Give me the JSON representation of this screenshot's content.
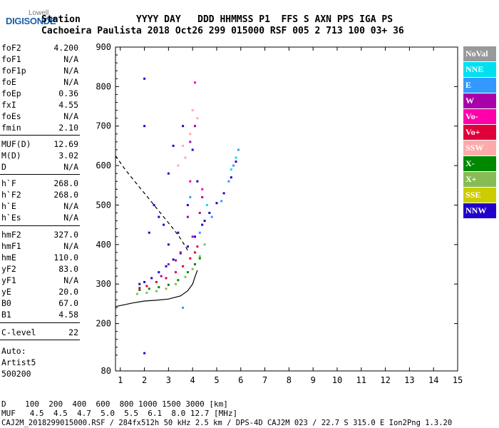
{
  "logo": {
    "top": "Lowell",
    "main": "DIGISONDE"
  },
  "header": {
    "line1": "Station          YYYY DAY   DDD HHMMSS P1  FFS S AXN PPS IGA PS",
    "line2": "Cachoeira Paulista 2018 Oct26 299 015000 RSF 005 2 713 100 03+ 36"
  },
  "params": [
    {
      "label": "foF2",
      "value": "4.200"
    },
    {
      "label": "foF1",
      "value": "N/A"
    },
    {
      "label": "foF1p",
      "value": "N/A"
    },
    {
      "label": "foE",
      "value": "N/A"
    },
    {
      "label": "foEp",
      "value": "0.36"
    },
    {
      "label": "fxI",
      "value": "4.55"
    },
    {
      "label": "foEs",
      "value": "N/A"
    },
    {
      "label": "fmin",
      "value": "2.10"
    },
    {
      "label": "MUF(D)",
      "value": "12.69"
    },
    {
      "label": "M(D)",
      "value": "3.02"
    },
    {
      "label": "D",
      "value": "N/A"
    },
    {
      "label": "h`F",
      "value": "268.0"
    },
    {
      "label": "h`F2",
      "value": "268.0"
    },
    {
      "label": "h`E",
      "value": "N/A"
    },
    {
      "label": "h`Es",
      "value": "N/A"
    },
    {
      "label": "hmF2",
      "value": "327.0"
    },
    {
      "label": "hmF1",
      "value": "N/A"
    },
    {
      "label": "hmE",
      "value": "110.0"
    },
    {
      "label": "yF2",
      "value": "83.0"
    },
    {
      "label": "yF1",
      "value": "N/A"
    },
    {
      "label": "yE",
      "value": "20.0"
    },
    {
      "label": "B0",
      "value": "67.0"
    },
    {
      "label": "B1",
      "value": "4.58"
    },
    {
      "label": "C-level",
      "value": "22"
    }
  ],
  "auto": {
    "line1": "Auto:",
    "line2": "Artist5",
    "line3": "500200"
  },
  "legend": [
    {
      "label": "NoVal",
      "color": "#999999"
    },
    {
      "label": "NNE",
      "color": "#00e0f0"
    },
    {
      "label": "E",
      "color": "#3399ff"
    },
    {
      "label": "W",
      "color": "#aa00aa"
    },
    {
      "label": "Vo-",
      "color": "#ff00aa"
    },
    {
      "label": "Vo+",
      "color": "#e0003a"
    },
    {
      "label": "SSW",
      "color": "#ffaaaa"
    },
    {
      "label": "X-",
      "color": "#008800"
    },
    {
      "label": "X+",
      "color": "#88bb55"
    },
    {
      "label": "SSE",
      "color": "#cccc00"
    },
    {
      "label": "NNW",
      "color": "#2200cc"
    }
  ],
  "bottom": {
    "d_line": "D    100  200  400  600  800 1000 1500 3000 [km]",
    "muf_line": "MUF   4.5  4.5  4.7  5.0  5.5  6.1  8.0 12.7 [MHz]",
    "footer": "CAJ2M_2018299015000.RSF / 284fx512h 50 kHz 2.5 km / DPS-4D CAJ2M 023 / 22.7 S 315.0 E Ion2Png 1.3.20"
  },
  "chart_data": {
    "type": "scatter",
    "xlim": [
      0.8,
      15
    ],
    "ylim": [
      80,
      900
    ],
    "x_ticks": [
      "1",
      "2",
      "3",
      "4",
      "5",
      "6",
      "7",
      "8",
      "9",
      "10",
      "11",
      "12",
      "13",
      "14",
      "15"
    ],
    "y_ticks": [
      "80",
      "200",
      "300",
      "400",
      "500",
      "600",
      "700",
      "800",
      "900"
    ],
    "grid": false,
    "legend_position": "right",
    "profile_curve": {
      "x": [
        0.8,
        1.5,
        2.0,
        2.5,
        3.0,
        3.5,
        3.8,
        4.0,
        4.1,
        4.2
      ],
      "y": [
        243,
        252,
        257,
        259,
        262,
        270,
        283,
        300,
        318,
        335
      ]
    },
    "extrapolated_curve": {
      "x": [
        0.8,
        1.2,
        1.6,
        2.0,
        2.4,
        2.8,
        3.2,
        3.5,
        3.8
      ],
      "y": [
        625,
        590,
        560,
        530,
        500,
        470,
        440,
        415,
        385
      ]
    },
    "series": [
      {
        "name": "NNW",
        "color": "#2200cc",
        "points": [
          [
            1.8,
            300
          ],
          [
            2.0,
            305
          ],
          [
            2.3,
            315
          ],
          [
            2.6,
            330
          ],
          [
            2.9,
            345
          ],
          [
            3.2,
            362
          ],
          [
            3.5,
            378
          ],
          [
            3.8,
            395
          ],
          [
            4.1,
            420
          ],
          [
            4.4,
            450
          ],
          [
            4.7,
            480
          ],
          [
            5.0,
            505
          ],
          [
            5.3,
            530
          ],
          [
            5.6,
            570
          ],
          [
            5.8,
            610
          ],
          [
            2.0,
            820
          ],
          [
            2.0,
            700
          ],
          [
            3.6,
            700
          ],
          [
            3.2,
            650
          ],
          [
            2.4,
            500
          ],
          [
            2.8,
            450
          ],
          [
            3.4,
            430
          ],
          [
            3.8,
            500
          ],
          [
            4.2,
            560
          ],
          [
            4.5,
            460
          ],
          [
            3.0,
            400
          ],
          [
            2.2,
            430
          ],
          [
            2.6,
            470
          ],
          [
            2.0,
            125
          ],
          [
            3.0,
            580
          ],
          [
            4.0,
            640
          ]
        ]
      },
      {
        "name": "E",
        "color": "#3399ff",
        "points": [
          [
            5.2,
            510
          ],
          [
            5.5,
            560
          ],
          [
            5.7,
            600
          ],
          [
            5.9,
            640
          ],
          [
            4.8,
            470
          ],
          [
            4.3,
            430
          ],
          [
            3.6,
            240
          ],
          [
            3.9,
            520
          ]
        ]
      },
      {
        "name": "NNE",
        "color": "#00e0f0",
        "points": [
          [
            5.6,
            590
          ],
          [
            5.8,
            620
          ],
          [
            4.6,
            500
          ]
        ]
      },
      {
        "name": "W",
        "color": "#aa00aa",
        "points": [
          [
            3.0,
            350
          ],
          [
            3.5,
            380
          ],
          [
            4.0,
            420
          ],
          [
            3.8,
            470
          ],
          [
            4.3,
            480
          ],
          [
            3.3,
            360
          ],
          [
            2.7,
            320
          ],
          [
            4.1,
            700
          ],
          [
            3.9,
            660
          ],
          [
            4.4,
            520
          ]
        ]
      },
      {
        "name": "Vo-",
        "color": "#ff00aa",
        "points": [
          [
            4.1,
            810
          ],
          [
            3.9,
            560
          ],
          [
            4.4,
            540
          ]
        ]
      },
      {
        "name": "Vo+",
        "color": "#e0003a",
        "points": [
          [
            1.8,
            290
          ],
          [
            2.1,
            295
          ],
          [
            2.5,
            305
          ],
          [
            2.9,
            315
          ],
          [
            3.3,
            330
          ],
          [
            3.6,
            345
          ],
          [
            3.9,
            365
          ],
          [
            4.1,
            380
          ],
          [
            4.2,
            395
          ]
        ]
      },
      {
        "name": "SSW",
        "color": "#ffaaaa",
        "points": [
          [
            3.7,
            620
          ],
          [
            3.9,
            680
          ],
          [
            4.2,
            720
          ],
          [
            3.4,
            600
          ],
          [
            4.0,
            740
          ],
          [
            3.6,
            650
          ]
        ]
      },
      {
        "name": "X-",
        "color": "#008800",
        "points": [
          [
            1.8,
            285
          ],
          [
            2.2,
            288
          ],
          [
            2.6,
            292
          ],
          [
            3.0,
            298
          ],
          [
            3.4,
            310
          ],
          [
            3.8,
            330
          ],
          [
            4.1,
            350
          ],
          [
            4.3,
            365
          ]
        ]
      },
      {
        "name": "X+",
        "color": "#88bb55",
        "points": [
          [
            1.7,
            275
          ],
          [
            2.1,
            278
          ],
          [
            2.5,
            282
          ],
          [
            2.9,
            288
          ],
          [
            3.3,
            300
          ],
          [
            3.7,
            318
          ],
          [
            4.0,
            338
          ],
          [
            4.3,
            370
          ],
          [
            4.5,
            400
          ]
        ]
      }
    ]
  }
}
